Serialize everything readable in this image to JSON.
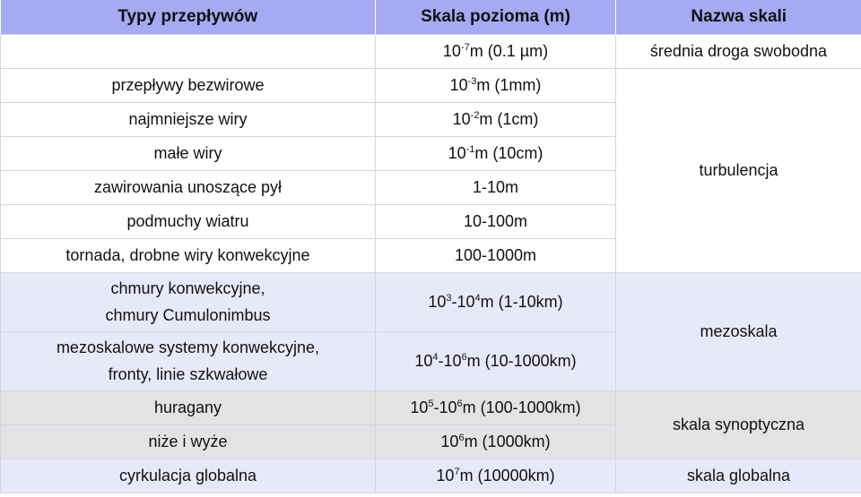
{
  "headers": {
    "type": "Typy przepływów",
    "scale": "Skala pozioma (m)",
    "name": "Nazwa skali"
  },
  "rows": [
    {
      "type": "",
      "scale_base": "10",
      "scale_exp": "-7",
      "scale_rest": "m (0.1 µm)",
      "name": "średnia droga swobodna"
    },
    {
      "type": "przepływy bezwirowe",
      "scale_base": "10",
      "scale_exp": "-3",
      "scale_rest": "m (1mm)"
    },
    {
      "type": "najmniejsze wiry",
      "scale_base": "10",
      "scale_exp": "-2",
      "scale_rest": "m (1cm)"
    },
    {
      "type": "małe wiry",
      "scale_base": "10",
      "scale_exp": "-1",
      "scale_rest": "m (10cm)"
    },
    {
      "type": "zawirowania unoszące pył",
      "scale_text": "1-10m"
    },
    {
      "type": "podmuchy wiatru",
      "scale_text": "10-100m"
    },
    {
      "type": "tornada, drobne wiry konwekcyjne",
      "scale_text": "100-1000m"
    },
    {
      "type_line1": "chmury konwekcyjne,",
      "type_line2": "chmury Cumulonimbus",
      "scale_a": "10",
      "scale_a_exp": "3",
      "scale_sep": "-10",
      "scale_b_exp": "4",
      "scale_rest": "m (1-10km)"
    },
    {
      "type_line1": "mezoskalowe systemy konwekcyjne,",
      "type_line2": "fronty, linie szkwałowe",
      "scale_a": "10",
      "scale_a_exp": "4",
      "scale_sep": "-10",
      "scale_b_exp": "6",
      "scale_rest": "m (10-1000km)"
    },
    {
      "type": "huragany",
      "scale_a": "10",
      "scale_a_exp": "5",
      "scale_sep": "-10",
      "scale_b_exp": "6",
      "scale_rest": "m (100-1000km)"
    },
    {
      "type": "niże i wyże",
      "scale_base": "10",
      "scale_exp": "6",
      "scale_rest": "m (1000km)"
    },
    {
      "type": "cyrkulacja globalna",
      "scale_base": "10",
      "scale_exp": "7",
      "scale_rest": "m (10000km)",
      "name": "skala globalna"
    }
  ],
  "merged_names": {
    "turbulence": "turbulencja",
    "mesoscale": "mezoskala",
    "synoptic": "skala synoptyczna"
  }
}
